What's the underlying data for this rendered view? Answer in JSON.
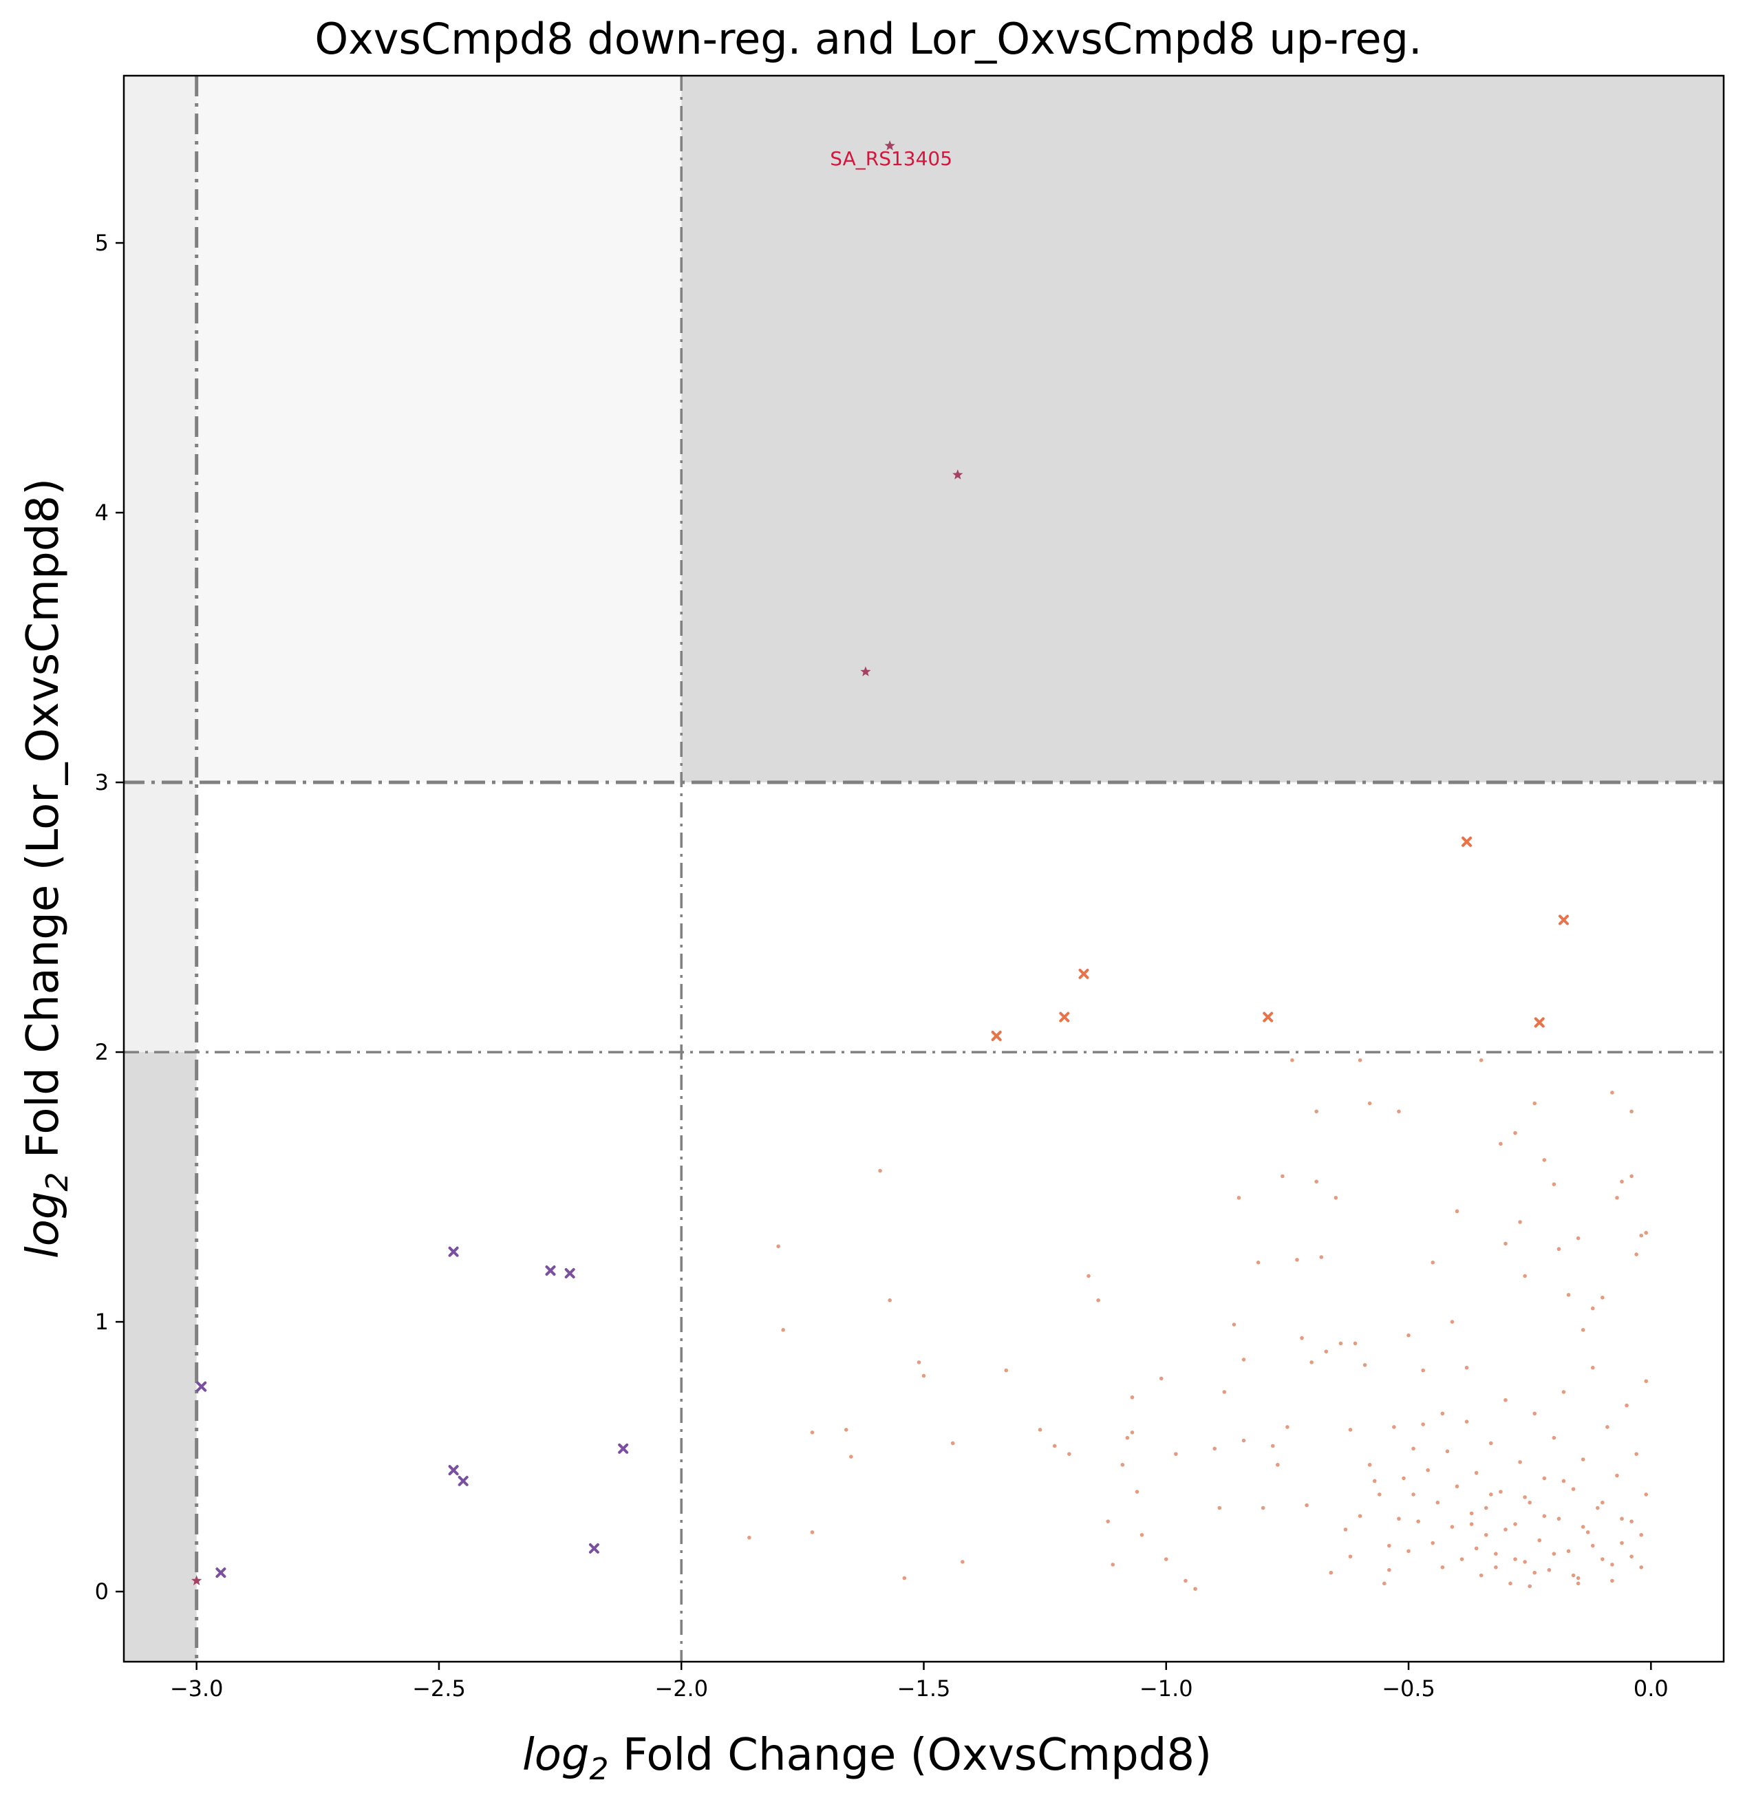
{
  "chart_data": {
    "type": "scatter",
    "title": "OxvsCmpd8 down-reg. and Lor_OxvsCmpd8 up-reg.",
    "xlabel": {
      "italic": "log",
      "sub": "2",
      "rest": " Fold Change (OxvsCmpd8)"
    },
    "ylabel": {
      "italic": "log",
      "sub": "2",
      "rest": " Fold Change (Lor_OxvsCmpd8)"
    },
    "xlim": [
      -3.15,
      0.15
    ],
    "ylim": [
      -0.26,
      5.62
    ],
    "xticks": [
      -3.0,
      -2.5,
      -2.0,
      -1.5,
      -1.0,
      -0.5,
      0.0
    ],
    "xtick_labels": [
      "−3.0",
      "−2.5",
      "−2.0",
      "−1.5",
      "−1.0",
      "−0.5",
      "0.0"
    ],
    "yticks": [
      0,
      1,
      2,
      3,
      4,
      5
    ],
    "ytick_labels": [
      "0",
      "1",
      "2",
      "3",
      "4",
      "5"
    ],
    "grid": false,
    "colors": {
      "region_dark": "#dbdbdb",
      "region_light": "#f7f7f7",
      "region_mid": "#f0f0f0",
      "threshold_line": "#808080",
      "small_points": "#e08a68",
      "orange_markers": "#e8734a",
      "purple_markers": "#7b4fa0",
      "star_markers": "#a34262",
      "annotation": "#d7143c"
    },
    "shaded_regions": [
      {
        "x": [
          -2.0,
          0.15
        ],
        "y": [
          3.0,
          5.62
        ],
        "tone": "region_dark"
      },
      {
        "x": [
          -3.0,
          -2.0
        ],
        "y": [
          3.0,
          5.62
        ],
        "tone": "region_light"
      },
      {
        "x": [
          -3.15,
          -3.0
        ],
        "y": [
          2.0,
          5.62
        ],
        "tone": "region_mid"
      },
      {
        "x": [
          -3.15,
          -3.0
        ],
        "y": [
          -0.26,
          2.0
        ],
        "tone": "region_dark"
      }
    ],
    "threshold_lines": {
      "vertical": [
        -3.0,
        -2.0
      ],
      "horizontal": [
        3.0,
        2.0
      ]
    },
    "series": [
      {
        "marker": "star",
        "color": "star_markers",
        "points": [
          [
            -1.57,
            5.36
          ],
          [
            -1.43,
            4.14
          ],
          [
            -1.62,
            3.41
          ],
          [
            -3.0,
            0.04
          ]
        ]
      },
      {
        "marker": "x",
        "color": "orange_markers",
        "points": [
          [
            -0.38,
            2.78
          ],
          [
            -0.18,
            2.49
          ],
          [
            -1.17,
            2.29
          ],
          [
            -1.21,
            2.13
          ],
          [
            -0.79,
            2.13
          ],
          [
            -1.35,
            2.06
          ],
          [
            -0.23,
            2.11
          ]
        ]
      },
      {
        "marker": "x",
        "color": "purple_markers",
        "points": [
          [
            -2.47,
            1.26
          ],
          [
            -2.27,
            1.19
          ],
          [
            -2.23,
            1.18
          ],
          [
            -2.99,
            0.76
          ],
          [
            -2.12,
            0.53
          ],
          [
            -2.47,
            0.45
          ],
          [
            -2.45,
            0.41
          ],
          [
            -2.18,
            0.16
          ],
          [
            -2.95,
            0.07
          ]
        ]
      },
      {
        "marker": "dot",
        "color": "small_points",
        "points": [
          [
            -1.59,
            1.56
          ],
          [
            -1.57,
            1.08
          ],
          [
            -1.8,
            1.28
          ],
          [
            -1.79,
            0.97
          ],
          [
            -1.51,
            0.85
          ],
          [
            -1.5,
            0.8
          ],
          [
            -1.33,
            0.82
          ],
          [
            -1.44,
            0.55
          ],
          [
            -1.42,
            0.11
          ],
          [
            -1.54,
            0.05
          ],
          [
            -1.66,
            0.6
          ],
          [
            -1.65,
            0.5
          ],
          [
            -1.73,
            0.59
          ],
          [
            -1.73,
            0.22
          ],
          [
            -1.86,
            0.2
          ],
          [
            -1.16,
            1.17
          ],
          [
            -1.14,
            1.08
          ],
          [
            -1.26,
            0.6
          ],
          [
            -1.23,
            0.54
          ],
          [
            -1.2,
            0.51
          ],
          [
            -1.12,
            0.26
          ],
          [
            -1.11,
            0.1
          ],
          [
            -1.07,
            0.72
          ],
          [
            -1.07,
            0.59
          ],
          [
            -1.08,
            0.57
          ],
          [
            -1.09,
            0.47
          ],
          [
            -1.06,
            0.37
          ],
          [
            -1.05,
            0.21
          ],
          [
            -1.01,
            0.79
          ],
          [
            -1.0,
            0.12
          ],
          [
            -0.98,
            0.51
          ],
          [
            -0.96,
            0.04
          ],
          [
            -0.94,
            0.01
          ],
          [
            -0.9,
            0.53
          ],
          [
            -0.89,
            0.31
          ],
          [
            -0.88,
            0.74
          ],
          [
            -0.86,
            0.99
          ],
          [
            -0.85,
            1.46
          ],
          [
            -0.84,
            0.86
          ],
          [
            -0.84,
            0.56
          ],
          [
            -0.81,
            1.22
          ],
          [
            -0.8,
            0.31
          ],
          [
            -0.78,
            0.54
          ],
          [
            -0.77,
            0.47
          ],
          [
            -0.76,
            1.54
          ],
          [
            -0.75,
            0.61
          ],
          [
            -0.74,
            1.97
          ],
          [
            -0.73,
            1.23
          ],
          [
            -0.72,
            0.94
          ],
          [
            -0.71,
            0.32
          ],
          [
            -0.7,
            0.85
          ],
          [
            -0.69,
            1.78
          ],
          [
            -0.69,
            1.52
          ],
          [
            -0.68,
            1.24
          ],
          [
            -0.67,
            0.89
          ],
          [
            -0.66,
            0.07
          ],
          [
            -0.65,
            1.46
          ],
          [
            -0.64,
            0.92
          ],
          [
            -0.62,
            0.6
          ],
          [
            -0.61,
            0.92
          ],
          [
            -0.6,
            1.97
          ],
          [
            -0.59,
            0.84
          ],
          [
            -0.58,
            1.81
          ],
          [
            -0.57,
            0.41
          ],
          [
            -0.55,
            0.03
          ],
          [
            -0.54,
            0.17
          ],
          [
            -0.52,
            1.78
          ],
          [
            -0.5,
            0.95
          ],
          [
            -0.49,
            0.53
          ],
          [
            -0.47,
            0.82
          ],
          [
            -0.45,
            1.22
          ],
          [
            -0.43,
            0.66
          ],
          [
            -0.41,
            1.0
          ],
          [
            -0.4,
            1.41
          ],
          [
            -0.38,
            0.83
          ],
          [
            -0.37,
            0.25
          ],
          [
            -0.35,
            1.97
          ],
          [
            -0.33,
            0.36
          ],
          [
            -0.31,
            1.66
          ],
          [
            -0.3,
            1.29
          ],
          [
            -0.28,
            1.7
          ],
          [
            -0.27,
            1.37
          ],
          [
            -0.26,
            1.17
          ],
          [
            -0.24,
            1.81
          ],
          [
            -0.22,
            1.6
          ],
          [
            -0.2,
            1.51
          ],
          [
            -0.19,
            1.27
          ],
          [
            -0.17,
            1.1
          ],
          [
            -0.15,
            1.31
          ],
          [
            -0.14,
            0.97
          ],
          [
            -0.12,
            1.05
          ],
          [
            -0.1,
            1.09
          ],
          [
            -0.08,
            1.85
          ],
          [
            -0.07,
            1.46
          ],
          [
            -0.06,
            1.52
          ],
          [
            -0.04,
            1.78
          ],
          [
            -0.04,
            1.54
          ],
          [
            -0.03,
            1.25
          ],
          [
            -0.02,
            1.32
          ],
          [
            -0.01,
            1.33
          ],
          [
            -0.63,
            0.23
          ],
          [
            -0.62,
            0.13
          ],
          [
            -0.6,
            0.28
          ],
          [
            -0.58,
            0.47
          ],
          [
            -0.56,
            0.36
          ],
          [
            -0.54,
            0.08
          ],
          [
            -0.53,
            0.61
          ],
          [
            -0.52,
            0.27
          ],
          [
            -0.51,
            0.42
          ],
          [
            -0.5,
            0.15
          ],
          [
            -0.49,
            0.36
          ],
          [
            -0.48,
            0.26
          ],
          [
            -0.47,
            0.62
          ],
          [
            -0.46,
            0.45
          ],
          [
            -0.45,
            0.18
          ],
          [
            -0.44,
            0.33
          ],
          [
            -0.43,
            0.09
          ],
          [
            -0.42,
            0.52
          ],
          [
            -0.41,
            0.24
          ],
          [
            -0.4,
            0.39
          ],
          [
            -0.39,
            0.12
          ],
          [
            -0.38,
            0.63
          ],
          [
            -0.37,
            0.29
          ],
          [
            -0.36,
            0.44
          ],
          [
            -0.35,
            0.06
          ],
          [
            -0.34,
            0.21
          ],
          [
            -0.33,
            0.55
          ],
          [
            -0.32,
            0.14
          ],
          [
            -0.31,
            0.37
          ],
          [
            -0.3,
            0.71
          ],
          [
            -0.29,
            0.03
          ],
          [
            -0.28,
            0.25
          ],
          [
            -0.27,
            0.48
          ],
          [
            -0.26,
            0.11
          ],
          [
            -0.25,
            0.33
          ],
          [
            -0.24,
            0.66
          ],
          [
            -0.23,
            0.19
          ],
          [
            -0.22,
            0.42
          ],
          [
            -0.21,
            0.08
          ],
          [
            -0.2,
            0.57
          ],
          [
            -0.19,
            0.27
          ],
          [
            -0.18,
            0.74
          ],
          [
            -0.17,
            0.15
          ],
          [
            -0.16,
            0.38
          ],
          [
            -0.15,
            0.05
          ],
          [
            -0.14,
            0.49
          ],
          [
            -0.13,
            0.22
          ],
          [
            -0.12,
            0.83
          ],
          [
            -0.11,
            0.31
          ],
          [
            -0.1,
            0.12
          ],
          [
            -0.09,
            0.61
          ],
          [
            -0.08,
            0.04
          ],
          [
            -0.07,
            0.43
          ],
          [
            -0.06,
            0.18
          ],
          [
            -0.05,
            0.69
          ],
          [
            -0.04,
            0.26
          ],
          [
            -0.03,
            0.51
          ],
          [
            -0.02,
            0.09
          ],
          [
            -0.01,
            0.36
          ],
          [
            -0.01,
            0.78
          ],
          [
            -0.36,
            0.16
          ],
          [
            -0.34,
            0.31
          ],
          [
            -0.32,
            0.09
          ],
          [
            -0.3,
            0.23
          ],
          [
            -0.28,
            0.12
          ],
          [
            -0.26,
            0.35
          ],
          [
            -0.24,
            0.07
          ],
          [
            -0.22,
            0.28
          ],
          [
            -0.2,
            0.14
          ],
          [
            -0.18,
            0.41
          ],
          [
            -0.16,
            0.06
          ],
          [
            -0.14,
            0.24
          ],
          [
            -0.12,
            0.17
          ],
          [
            -0.1,
            0.33
          ],
          [
            -0.08,
            0.1
          ],
          [
            -0.06,
            0.27
          ],
          [
            -0.04,
            0.13
          ],
          [
            -0.02,
            0.21
          ],
          [
            -0.25,
            0.02
          ],
          [
            -0.15,
            0.03
          ]
        ]
      }
    ],
    "annotations": [
      {
        "text": "SA_RS13405",
        "x": -1.57,
        "y": 5.36
      }
    ]
  }
}
